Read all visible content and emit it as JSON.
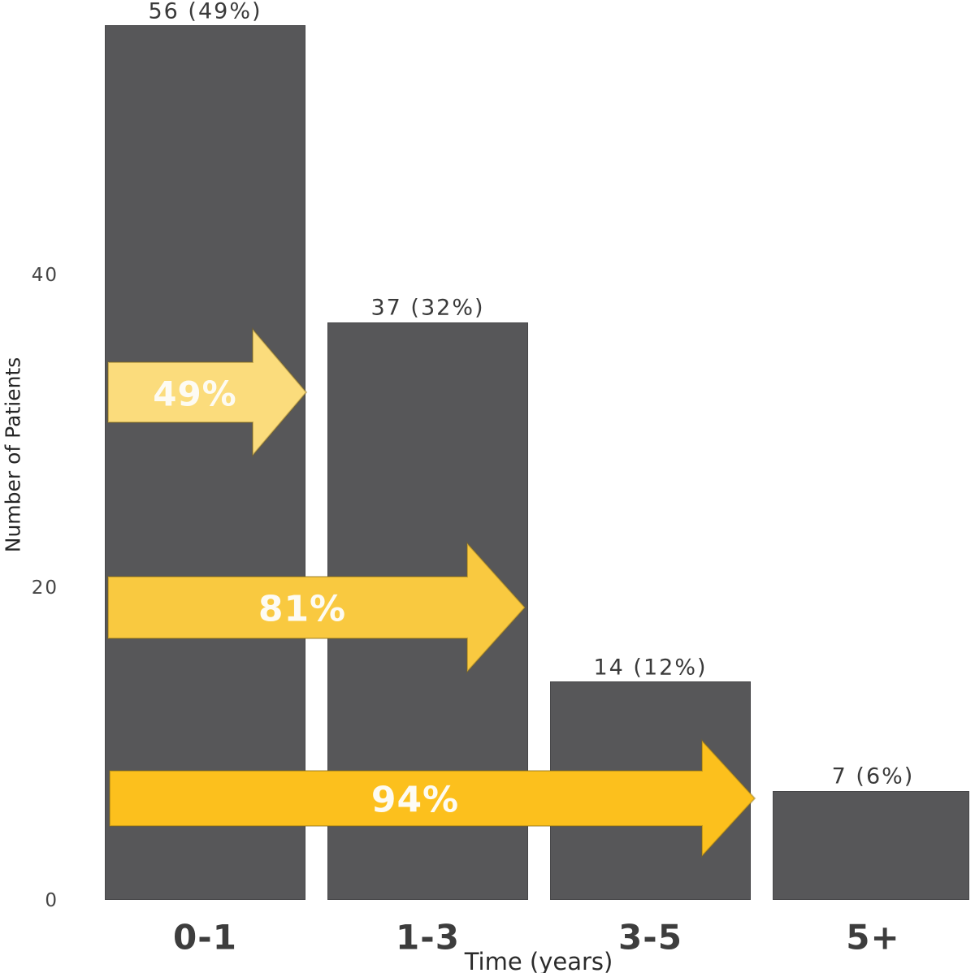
{
  "page": {
    "background": "#ffffff"
  },
  "chart_data": {
    "type": "bar",
    "title": "",
    "xlabel": "Time (years)",
    "ylabel": "Number of Patients",
    "categories": [
      "0-1",
      "1-3",
      "3-5",
      "5+"
    ],
    "values": [
      56,
      37,
      14,
      7
    ],
    "percentages": [
      49,
      32,
      12,
      6
    ],
    "value_labels": [
      "56 (49%)",
      "37 (32%)",
      "14 (12%)",
      "7 (6%)"
    ],
    "yticks": [
      0,
      20,
      40
    ],
    "ylim": [
      0,
      58
    ],
    "grid": false,
    "legend": "none",
    "bar_color": "#575759",
    "text_color": "#3a3a3a",
    "arrows": [
      {
        "label": "49%",
        "from": "0-1",
        "to": "1-3",
        "color": "#fbdc7c"
      },
      {
        "label": "81%",
        "from": "0-1",
        "to": "3-5",
        "color": "#f9c940"
      },
      {
        "label": "94%",
        "from": "0-1",
        "to": "5+",
        "color": "#fcc01d"
      }
    ]
  }
}
